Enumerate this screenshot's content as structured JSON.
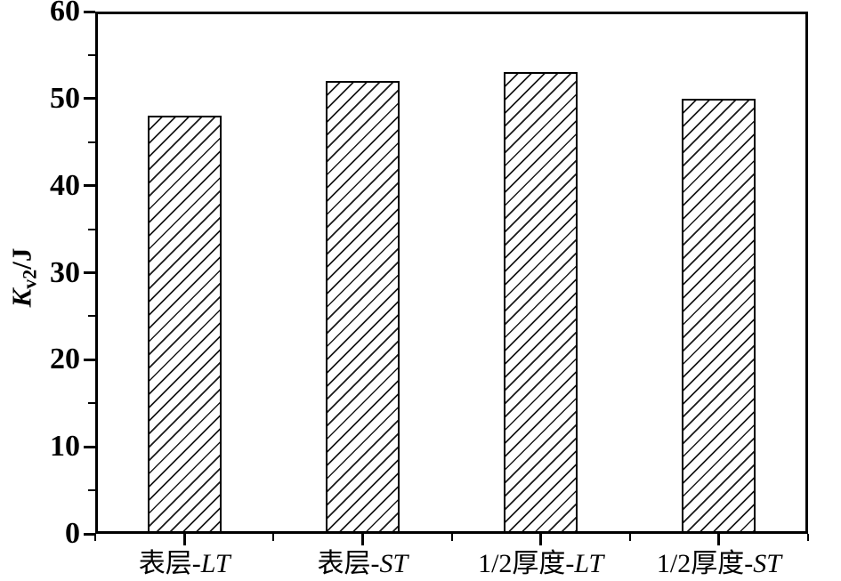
{
  "figure": {
    "background": "#ffffff",
    "axis_color": "#000000",
    "bar_fill": "#ffffff",
    "bar_edge": "#000000",
    "hatch_style": "forward-diagonal"
  },
  "chart_data": {
    "type": "bar",
    "title": "",
    "xlabel": "",
    "ylabel": "Kv2/J",
    "ylabel_parts": {
      "italic": "K",
      "subscript": "v2",
      "rest": "/J"
    },
    "categories": [
      "表层-LT",
      "表层-ST",
      "1/2厚度-LT",
      "1/2厚度-ST"
    ],
    "category_parts": [
      {
        "prefix": "表层-",
        "italic": "LT"
      },
      {
        "prefix": "表层-",
        "italic": "ST"
      },
      {
        "prefix": "1/2厚度-",
        "italic": "LT"
      },
      {
        "prefix": "1/2厚度-",
        "italic": "ST"
      }
    ],
    "values": [
      48,
      52,
      53,
      50
    ],
    "ylim": [
      0,
      60
    ],
    "ytick_major_step": 10,
    "ytick_minor_step": 5,
    "ytick_major_labels": [
      "0",
      "10",
      "20",
      "30",
      "40",
      "50",
      "60"
    ],
    "grid": false,
    "legend": "none",
    "frame": "full-box"
  }
}
